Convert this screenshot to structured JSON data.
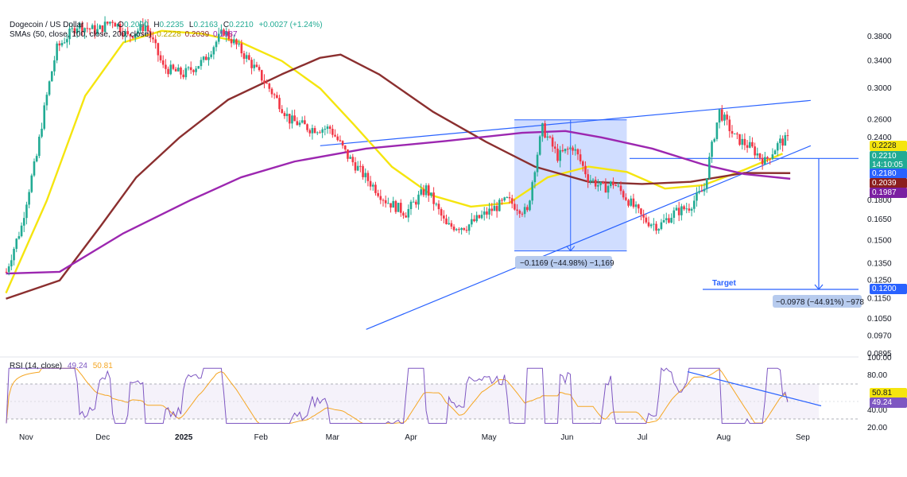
{
  "legend": {
    "symbol": "Dogecoin / US Dollar",
    "open_label": "O",
    "open": "0.2090",
    "high_label": "H",
    "high": "0.2235",
    "low_label": "L",
    "low": "0.2163",
    "close_label": "C",
    "close": "0.2210",
    "change": "+0.0027 (+1.24%)",
    "sma_title": "SMAs (50, close, 100, close, 200, close)",
    "sma50": "0.2228",
    "sma100": "0.2039",
    "sma200": "0.1987",
    "rsi_title": "RSI (14, close)",
    "rsi_value": "49.24",
    "rsi_ma": "50.81"
  },
  "price_tags": {
    "sma50": {
      "text": "0.2228",
      "color": "#f5e50f",
      "text_color": "#131722"
    },
    "close": {
      "text": "0.2210",
      "color": "#22ab94",
      "text_color": "#ffffff"
    },
    "countdown": {
      "text": "14:10:05",
      "color": "#22ab94",
      "text_color": "#ffffff"
    },
    "line": {
      "text": "0.2180",
      "color": "#2962ff",
      "text_color": "#ffffff"
    },
    "sma100": {
      "text": "0.2039",
      "color": "#8b1e1e",
      "text_color": "#ffffff"
    },
    "sma200": {
      "text": "0.1987",
      "color": "#7b1fa2",
      "text_color": "#ffffff"
    },
    "target": {
      "text": "0.1200",
      "color": "#2962ff",
      "text_color": "#ffffff"
    },
    "rsi_ma": {
      "text": "50.81",
      "color": "#f5e50f",
      "text_color": "#131722"
    },
    "rsi": {
      "text": "49.24",
      "color": "#7e57c2",
      "text_color": "#ffffff"
    }
  },
  "annotations": {
    "measure1": "−0.1169 (−44.98%) −1,169",
    "measure2": "−0.0978 (−44.91%) −978",
    "target": "Target"
  },
  "chart_data": [
    {
      "type": "candlestick",
      "title": "Dogecoin / US Dollar",
      "x_axis": {
        "tick_labels": [
          "Nov",
          "Dec",
          "2025",
          "Feb",
          "Mar",
          "Apr",
          "May",
          "Jun",
          "Jul",
          "Aug",
          "Sep"
        ],
        "bold": [
          "2025"
        ]
      },
      "y_axis": {
        "scale": "log",
        "tick_labels": [
          "0.3800",
          "0.3400",
          "0.3000",
          "0.2600",
          "0.2400",
          "0.1800",
          "0.1650",
          "0.1500",
          "0.1350",
          "0.1250",
          "0.1150",
          "0.1050",
          "0.0970",
          "0.0895"
        ]
      },
      "series": [
        {
          "name": "SMA 50",
          "color": "#f5e50f",
          "points": [
            [
              "2024-10-25",
              0.118
            ],
            [
              "2024-11-10",
              0.18
            ],
            [
              "2024-11-25",
              0.29
            ],
            [
              "2024-12-10",
              0.37
            ],
            [
              "2024-12-25",
              0.39
            ],
            [
              "2025-01-10",
              0.385
            ],
            [
              "2025-01-25",
              0.37
            ],
            [
              "2025-02-10",
              0.34
            ],
            [
              "2025-02-25",
              0.3
            ],
            [
              "2025-03-10",
              0.255
            ],
            [
              "2025-03-25",
              0.21
            ],
            [
              "2025-04-10",
              0.184
            ],
            [
              "2025-04-25",
              0.175
            ],
            [
              "2025-05-10",
              0.178
            ],
            [
              "2025-05-25",
              0.2
            ],
            [
              "2025-06-10",
              0.21
            ],
            [
              "2025-06-25",
              0.205
            ],
            [
              "2025-07-10",
              0.19
            ],
            [
              "2025-07-25",
              0.193
            ],
            [
              "2025-08-10",
              0.207
            ],
            [
              "2025-08-25",
              0.2228
            ]
          ]
        },
        {
          "name": "SMA 100",
          "color": "#8b2f2f",
          "points": [
            [
              "2024-10-25",
              0.115
            ],
            [
              "2024-11-15",
              0.125
            ],
            [
              "2024-12-01",
              0.16
            ],
            [
              "2024-12-15",
              0.2
            ],
            [
              "2025-01-01",
              0.24
            ],
            [
              "2025-01-20",
              0.285
            ],
            [
              "2025-02-10",
              0.32
            ],
            [
              "2025-02-25",
              0.345
            ],
            [
              "2025-03-05",
              0.35
            ],
            [
              "2025-03-20",
              0.32
            ],
            [
              "2025-04-10",
              0.27
            ],
            [
              "2025-05-01",
              0.235
            ],
            [
              "2025-05-20",
              0.21
            ],
            [
              "2025-06-10",
              0.196
            ],
            [
              "2025-07-01",
              0.194
            ],
            [
              "2025-07-20",
              0.196
            ],
            [
              "2025-08-10",
              0.204
            ],
            [
              "2025-08-28",
              0.2039
            ]
          ]
        },
        {
          "name": "SMA 200",
          "color": "#9c27b0",
          "points": [
            [
              "2024-10-25",
              0.129
            ],
            [
              "2024-11-15",
              0.13
            ],
            [
              "2024-12-10",
              0.155
            ],
            [
              "2025-01-05",
              0.18
            ],
            [
              "2025-01-25",
              0.2
            ],
            [
              "2025-02-15",
              0.215
            ],
            [
              "2025-03-15",
              0.228
            ],
            [
              "2025-04-15",
              0.236
            ],
            [
              "2025-05-15",
              0.245
            ],
            [
              "2025-06-01",
              0.247
            ],
            [
              "2025-06-15",
              0.24
            ],
            [
              "2025-07-05",
              0.228
            ],
            [
              "2025-07-25",
              0.212
            ],
            [
              "2025-08-10",
              0.203
            ],
            [
              "2025-08-28",
              0.1987
            ]
          ]
        }
      ],
      "trendlines": [
        {
          "name": "upper",
          "from": [
            "2025-02-25",
            0.231
          ],
          "to": [
            "2025-09-05",
            0.284
          ]
        },
        {
          "name": "lower",
          "from": [
            "2025-03-15",
            0.1
          ],
          "to": [
            "2025-09-05",
            0.231
          ]
        },
        {
          "name": "horizontal",
          "value": 0.218
        }
      ],
      "measures": [
        {
          "label": "−0.1169 (−44.98%) −1,169",
          "from": 0.2599,
          "to": 0.143
        },
        {
          "label": "−0.0978 (−44.91%) −978",
          "from": 0.218,
          "to": 0.12
        }
      ],
      "target": 0.12
    },
    {
      "type": "line",
      "title": "RSI (14, close)",
      "y_axis": {
        "tick_labels": [
          "100.00",
          "80.00",
          "40.00",
          "20.00"
        ]
      },
      "series": [
        {
          "name": "RSI",
          "color": "#7e57c2",
          "last": 49.24
        },
        {
          "name": "RSI MA",
          "color": "#f5a623",
          "last": 50.81
        }
      ]
    }
  ]
}
